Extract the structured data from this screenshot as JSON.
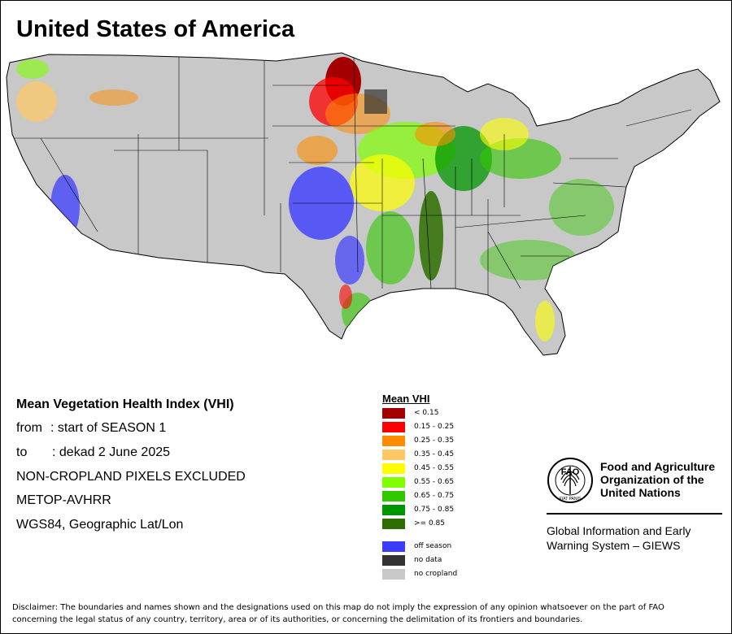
{
  "title": "United States of America",
  "info": {
    "heading": "Mean Vegetation Health Index (VHI)",
    "from_label": "from",
    "from_value": ": start of SEASON 1",
    "to_label": "to",
    "to_value": ": dekad 2 June 2025",
    "line3": "NON-CROPLAND PIXELS EXCLUDED",
    "line4": "METOP-AVHRR",
    "line5": "WGS84, Geographic Lat/Lon"
  },
  "legend": {
    "title": "Mean VHI",
    "classes": [
      {
        "label": "< 0.15",
        "color": "#a50000"
      },
      {
        "label": "0.15 - 0.25",
        "color": "#ff0000"
      },
      {
        "label": "0.25 - 0.35",
        "color": "#ff8c00"
      },
      {
        "label": "0.35 - 0.45",
        "color": "#ffc864"
      },
      {
        "label": "0.45 - 0.55",
        "color": "#ffff00"
      },
      {
        "label": "0.55 - 0.65",
        "color": "#80ff00"
      },
      {
        "label": "0.65 - 0.75",
        "color": "#32c800"
      },
      {
        "label": "0.75 - 0.85",
        "color": "#009600"
      },
      {
        "label": ">= 0.85",
        "color": "#2d6e00"
      }
    ],
    "extra": [
      {
        "label": "off season",
        "color": "#3c3cff"
      },
      {
        "label": "no data",
        "color": "#323232"
      },
      {
        "label": "no cropland",
        "color": "#c8c8c8"
      }
    ]
  },
  "fao": {
    "emblem_letters": "FAO",
    "emblem_motto": "FIAT PANIS",
    "name_line1": "Food and Agriculture",
    "name_line2": "Organization of the",
    "name_line3": "United Nations",
    "giews_line1": "Global Information and Early",
    "giews_line2": "Warning System – GIEWS"
  },
  "disclaimer": {
    "line1": "Disclaimer: The boundaries and names shown and the designations used on this map do not imply the expression of any opinion whatsoever on the part of FAO",
    "line2": "concerning the legal status of any country, territory, area or of its authorities, or concerning the delimitation of its frontiers and boundaries."
  }
}
